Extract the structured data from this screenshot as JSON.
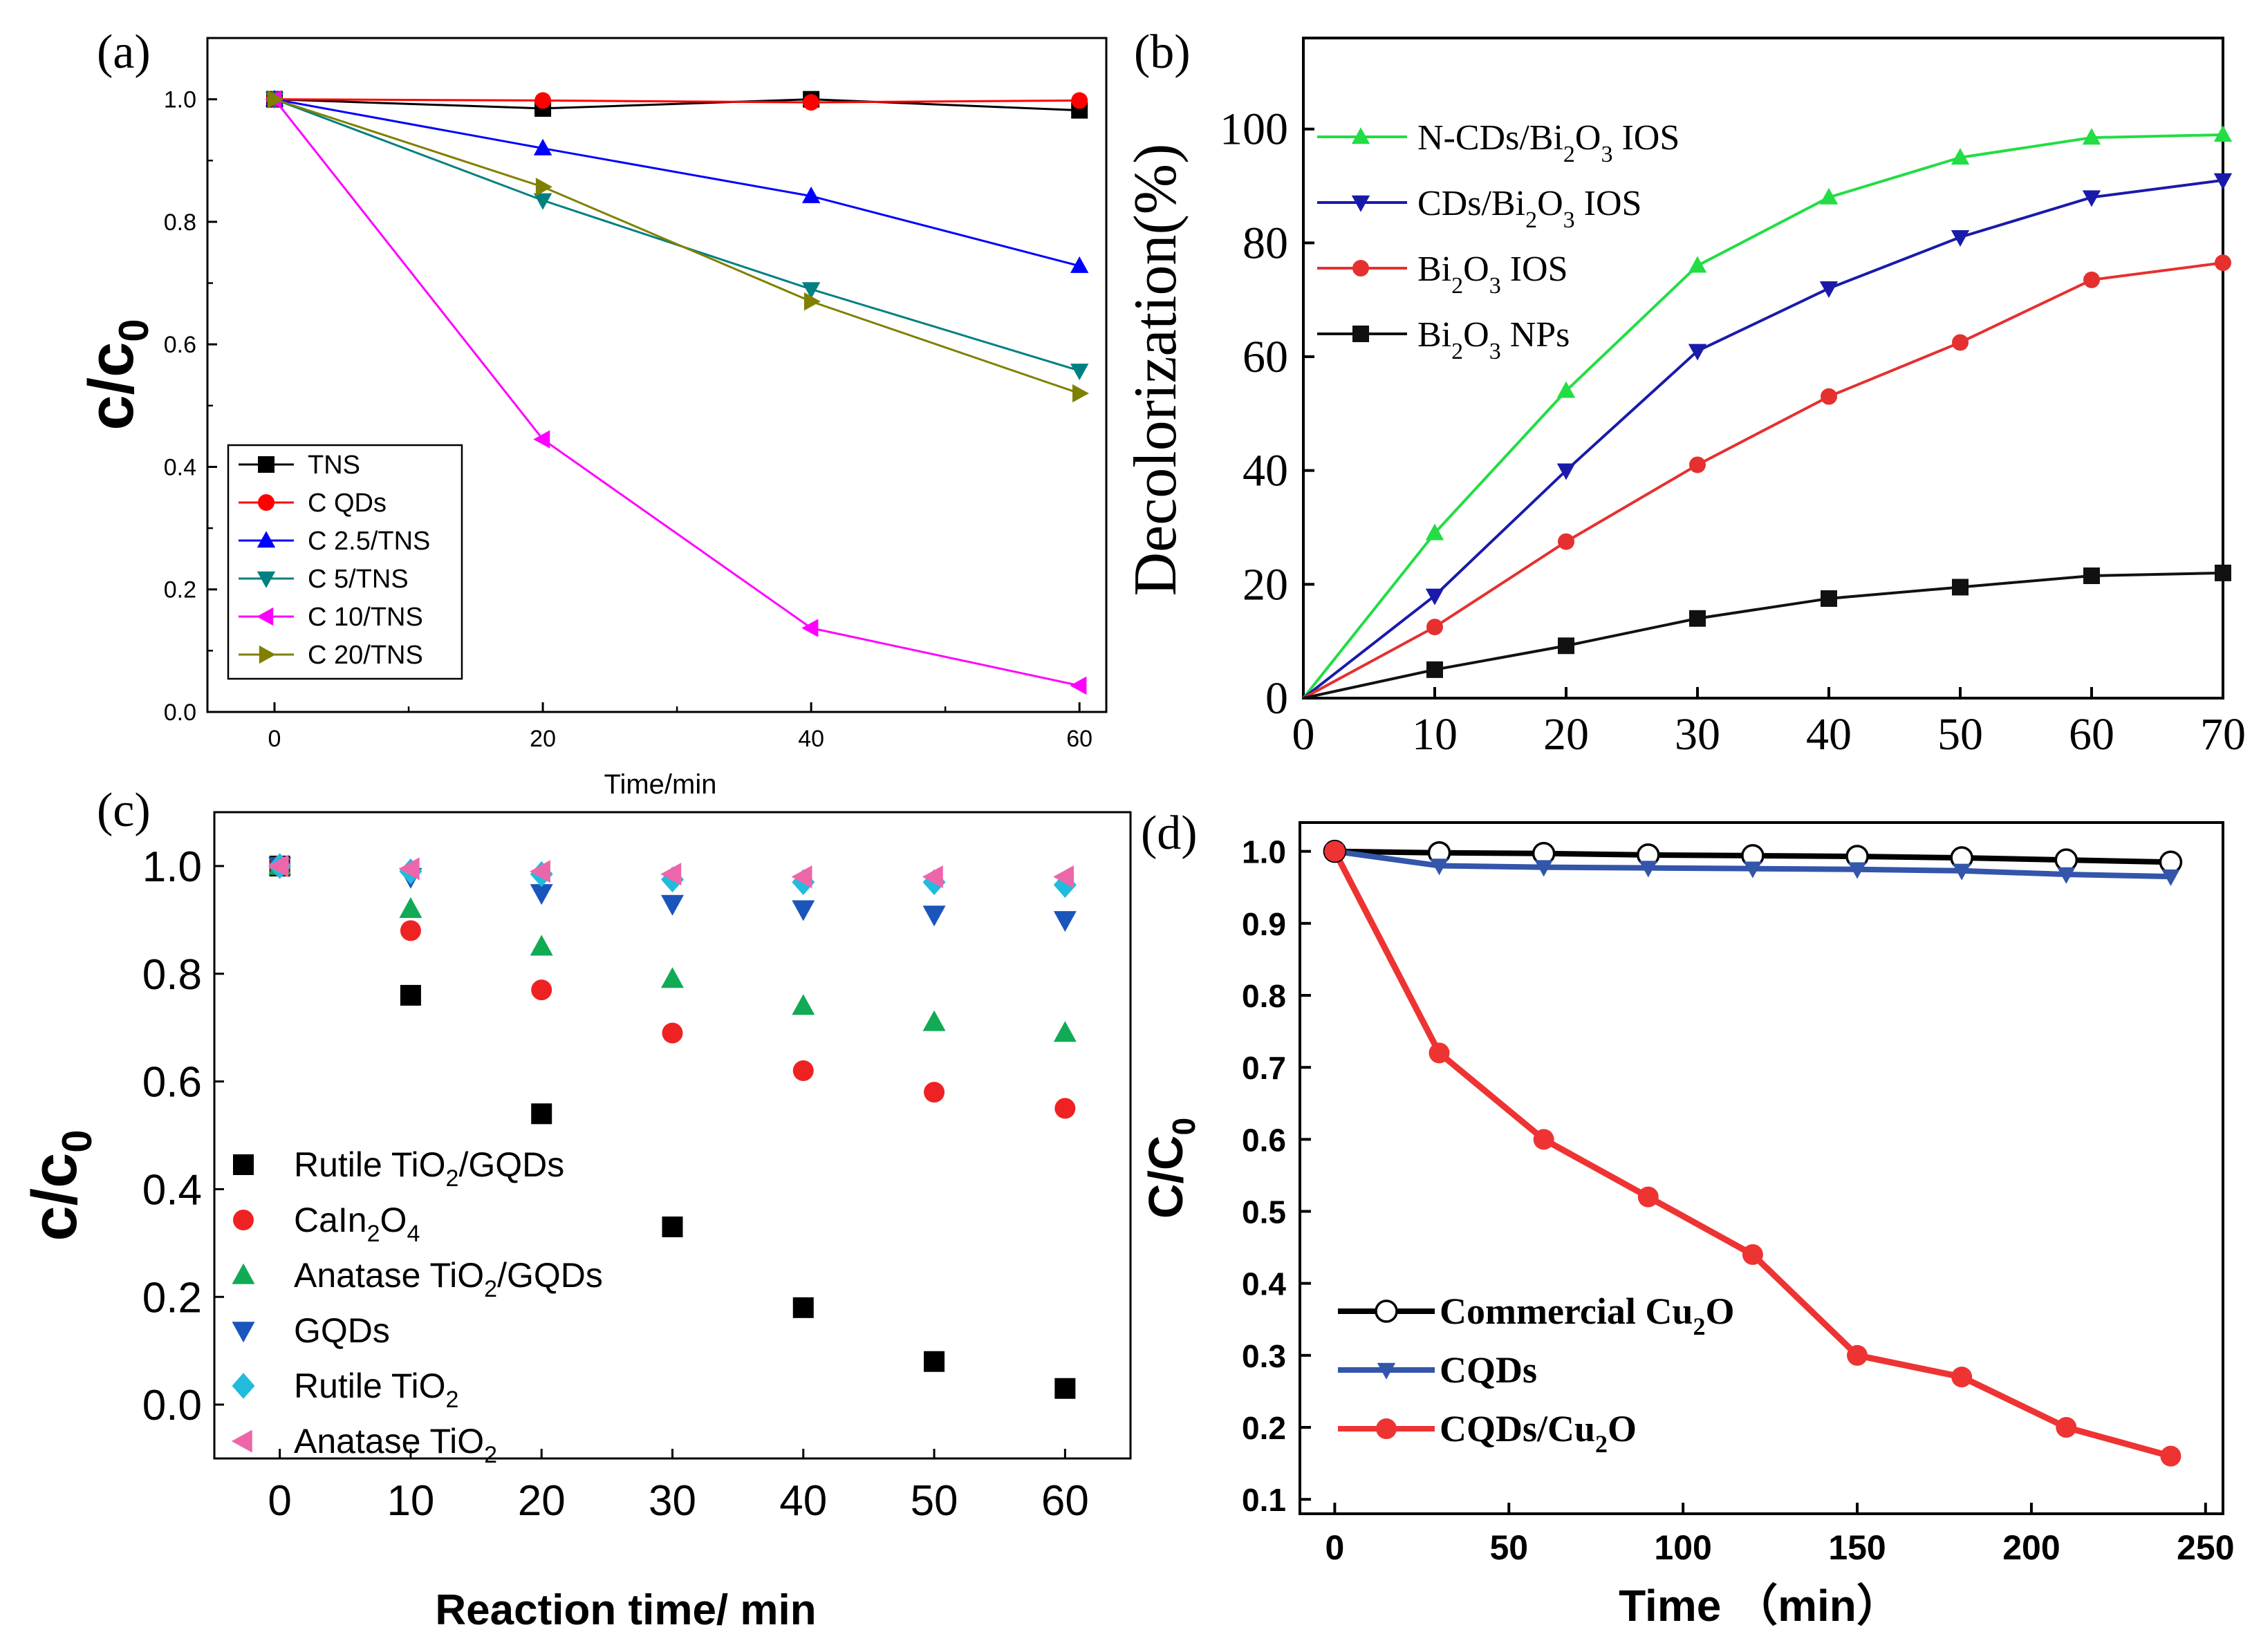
{
  "figure": {
    "panel_labels": [
      "(a)",
      "(b)",
      "(c)",
      "(d)"
    ]
  },
  "chart_data": [
    {
      "panel": "(a)",
      "type": "line",
      "title": "",
      "xlabel": "Time/min",
      "ylabel": "c/c0",
      "ylabel_main": "c/c",
      "ylabel_sub": "0",
      "xlim": [
        -5,
        62
      ],
      "ylim": [
        0,
        1.1
      ],
      "xticks": [
        0,
        20,
        40,
        60
      ],
      "yticks": [
        0.0,
        0.2,
        0.4,
        0.6,
        0.8,
        1.0
      ],
      "xtick_labels": [
        "0",
        "20",
        "40",
        "60"
      ],
      "ytick_labels": [
        "0.0",
        "0.2",
        "0.4",
        "0.6",
        "0.8",
        "1.0"
      ],
      "legend_position": "bottom-left",
      "x": [
        0,
        20,
        40,
        60
      ],
      "series": [
        {
          "name": "TNS",
          "marker": "square",
          "color": "#000000",
          "values": [
            1.0,
            0.985,
            1.0,
            0.982
          ]
        },
        {
          "name": "C QDs",
          "marker": "circle",
          "color": "#ff0000",
          "values": [
            1.0,
            0.998,
            0.995,
            0.998
          ]
        },
        {
          "name": "C 2.5/TNS",
          "marker": "triangle-up",
          "color": "#0000ff",
          "values": [
            1.0,
            0.92,
            0.842,
            0.728
          ]
        },
        {
          "name": "C 5/TNS",
          "marker": "triangle-down",
          "color": "#008080",
          "values": [
            1.0,
            0.835,
            0.69,
            0.557
          ]
        },
        {
          "name": "C 10/TNS",
          "marker": "triangle-left",
          "color": "#ff00ff",
          "values": [
            1.0,
            0.445,
            0.137,
            0.043
          ]
        },
        {
          "name": "C 20/TNS",
          "marker": "triangle-right",
          "color": "#808000",
          "values": [
            1.0,
            0.857,
            0.67,
            0.52
          ]
        }
      ]
    },
    {
      "panel": "(b)",
      "type": "line",
      "title": "",
      "xlabel": "",
      "ylabel": "Decolorization(%)",
      "xlim": [
        0,
        70
      ],
      "ylim": [
        0,
        116
      ],
      "xticks": [
        0,
        10,
        20,
        30,
        40,
        50,
        60,
        70
      ],
      "yticks": [
        0,
        20,
        40,
        60,
        80,
        100
      ],
      "xtick_labels": [
        "0",
        "10",
        "20",
        "30",
        "40",
        "50",
        "60",
        "70"
      ],
      "ytick_labels": [
        "0",
        "20",
        "40",
        "60",
        "80",
        "100"
      ],
      "legend_position": "top-left",
      "x": [
        0,
        10,
        20,
        30,
        40,
        50,
        60,
        70
      ],
      "series": [
        {
          "name": "N-CDs/Bi2O3 IOS",
          "label_main": "N-CDs/Bi",
          "label_sub": "2",
          "label_rest": "O",
          "label_sub2": "3",
          "label_tail": " IOS",
          "marker": "triangle-up",
          "color": "#22dd44",
          "values": [
            0,
            29,
            54,
            76,
            88,
            95,
            98.5,
            99
          ]
        },
        {
          "name": "CDs/Bi2O3 IOS",
          "label_main": "CDs/Bi",
          "label_sub": "2",
          "label_rest": "O",
          "label_sub2": "3",
          "label_tail": " IOS",
          "marker": "triangle-down",
          "color": "#1a1aaa",
          "values": [
            0,
            18,
            40,
            61,
            72,
            81,
            88,
            91
          ]
        },
        {
          "name": "Bi2O3 IOS",
          "label_main": "Bi",
          "label_sub": "2",
          "label_rest": "O",
          "label_sub2": "3",
          "label_tail": " IOS",
          "marker": "circle",
          "color": "#e53030",
          "values": [
            0,
            12.5,
            27.5,
            41,
            53,
            62.5,
            73.5,
            76.5
          ]
        },
        {
          "name": "Bi2O3 NPs",
          "label_main": "Bi",
          "label_sub": "2",
          "label_rest": "O",
          "label_sub2": "3",
          "label_tail": " NPs",
          "marker": "square",
          "color": "#111111",
          "values": [
            0,
            5,
            9.2,
            14,
            17.5,
            19.5,
            21.5,
            22
          ]
        }
      ]
    },
    {
      "panel": "(c)",
      "type": "scatter",
      "title": "",
      "xlabel": "Reaction time/ min",
      "ylabel": "c/c0",
      "ylabel_main": "c/c",
      "ylabel_sub": "0",
      "xlim": [
        -5,
        65
      ],
      "ylim": [
        -0.1,
        1.1
      ],
      "xticks": [
        0,
        10,
        20,
        30,
        40,
        50,
        60
      ],
      "yticks": [
        0.0,
        0.2,
        0.4,
        0.6,
        0.8,
        1.0
      ],
      "xtick_labels": [
        "0",
        "10",
        "20",
        "30",
        "40",
        "50",
        "60"
      ],
      "ytick_labels": [
        "0.0",
        "0.2",
        "0.4",
        "0.6",
        "0.8",
        "1.0"
      ],
      "legend_position": "bottom-left",
      "x": [
        0,
        10,
        20,
        30,
        40,
        50,
        60
      ],
      "series": [
        {
          "name": "Rutile TiO2/GQDs",
          "label_main": "Rutile TiO",
          "label_sub": "2",
          "label_tail": "/GQDs",
          "marker": "square",
          "color": "#000000",
          "values": [
            1.0,
            0.76,
            0.54,
            0.33,
            0.18,
            0.08,
            0.03
          ]
        },
        {
          "name": "CaIn2O4",
          "label_main": "CaIn",
          "label_sub": "2",
          "label_tail": "O",
          "label_sub2": "4",
          "marker": "circle",
          "color": "#ee2222",
          "values": [
            1.0,
            0.88,
            0.77,
            0.69,
            0.62,
            0.58,
            0.55
          ]
        },
        {
          "name": "Anatase TiO2/GQDs",
          "label_main": "Anatase TiO",
          "label_sub": "2",
          "label_tail": "/GQDs",
          "marker": "triangle-up",
          "color": "#11aa55",
          "values": [
            1.0,
            0.92,
            0.85,
            0.79,
            0.74,
            0.71,
            0.69
          ]
        },
        {
          "name": "GQDs",
          "label_main": "GQDs",
          "label_sub": "",
          "label_tail": "",
          "marker": "triangle-down",
          "color": "#1a55bb",
          "values": [
            1.0,
            0.98,
            0.95,
            0.93,
            0.92,
            0.91,
            0.9
          ]
        },
        {
          "name": "Rutile TiO2",
          "label_main": "Rutile TiO",
          "label_sub": "2",
          "label_tail": "",
          "marker": "diamond",
          "color": "#22bbdd",
          "values": [
            1.0,
            0.99,
            0.985,
            0.975,
            0.97,
            0.97,
            0.965
          ]
        },
        {
          "name": "Anatase TiO2",
          "label_main": "Anatase TiO",
          "label_sub": "2",
          "label_tail": "",
          "marker": "triangle-left",
          "color": "#ee66aa",
          "values": [
            1.0,
            0.995,
            0.99,
            0.985,
            0.98,
            0.98,
            0.98
          ]
        }
      ]
    },
    {
      "panel": "(d)",
      "type": "line",
      "title": "",
      "xlabel": "Time （min）",
      "ylabel": "C/C0",
      "ylabel_main": "C/C",
      "ylabel_sub": "0",
      "xlim": [
        -10,
        255
      ],
      "ylim": [
        0.08,
        1.04
      ],
      "xticks": [
        0,
        50,
        100,
        150,
        200,
        250
      ],
      "yticks": [
        0.1,
        0.2,
        0.3,
        0.4,
        0.5,
        0.6,
        0.7,
        0.8,
        0.9,
        1.0
      ],
      "xtick_labels": [
        "0",
        "50",
        "100",
        "150",
        "200",
        "250"
      ],
      "ytick_labels": [
        "0.1",
        "0.2",
        "0.3",
        "0.4",
        "0.5",
        "0.6",
        "0.7",
        "0.8",
        "0.9",
        "1.0"
      ],
      "legend_position": "bottom-left",
      "x": [
        0,
        30,
        60,
        90,
        120,
        150,
        180,
        210,
        240
      ],
      "series": [
        {
          "name": "Commercial Cu2O",
          "label_main": "Commercial Cu",
          "label_sub": "2",
          "label_tail": "O",
          "marker": "circle-open",
          "color": "#000000",
          "values": [
            1.0,
            0.998,
            0.997,
            0.995,
            0.994,
            0.993,
            0.991,
            0.988,
            0.985
          ]
        },
        {
          "name": "CQDs",
          "label_main": "CQDs",
          "label_sub": "",
          "label_tail": "",
          "marker": "triangle-down",
          "color": "#3355aa",
          "values": [
            1.0,
            0.98,
            0.978,
            0.977,
            0.976,
            0.975,
            0.973,
            0.968,
            0.965
          ]
        },
        {
          "name": "CQDs/Cu2O",
          "label_main": "CQDs/Cu",
          "label_sub": "2",
          "label_tail": "O",
          "marker": "circle",
          "color": "#ee3333",
          "values": [
            1.0,
            0.72,
            0.6,
            0.52,
            0.44,
            0.3,
            0.27,
            0.2,
            0.16
          ]
        }
      ]
    }
  ]
}
